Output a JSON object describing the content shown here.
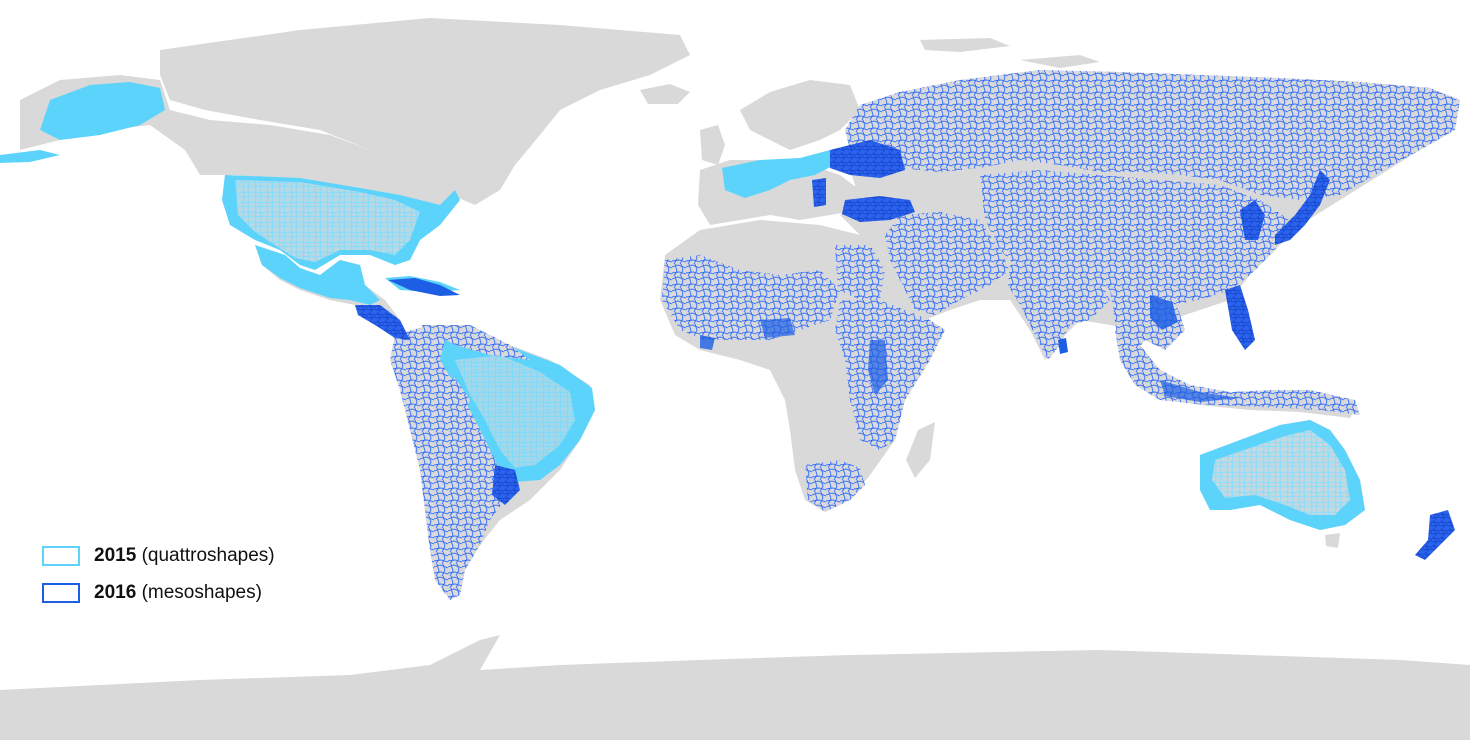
{
  "colors": {
    "land": "#d9d9d9",
    "ocean": "#ffffff",
    "coverage_2015": "#5cd3fb",
    "coverage_2016": "#1d5ee4",
    "boundary_2015": "#8fe0ff",
    "boundary_2016": "#2f6bff"
  },
  "legend": {
    "items": [
      {
        "year": "2015",
        "source": "(quattroshapes)",
        "color": "#5cd3fb"
      },
      {
        "year": "2016",
        "source": "(mesoshapes)",
        "color": "#1d5ee4"
      }
    ]
  },
  "map": {
    "projection": "equirectangular world map",
    "regions_2015": [
      "United States",
      "Mexico",
      "Central America (part)",
      "Brazil",
      "Australia",
      "France"
    ],
    "regions_2016": [
      "Russia",
      "China",
      "Central Asia",
      "Eastern Europe",
      "Middle East (part)",
      "India",
      "Southeast Asia",
      "Indonesia",
      "Philippines",
      "Japan",
      "Korea",
      "Africa (part)",
      "South America (except Brazil)",
      "Caribbean",
      "New Zealand"
    ]
  }
}
